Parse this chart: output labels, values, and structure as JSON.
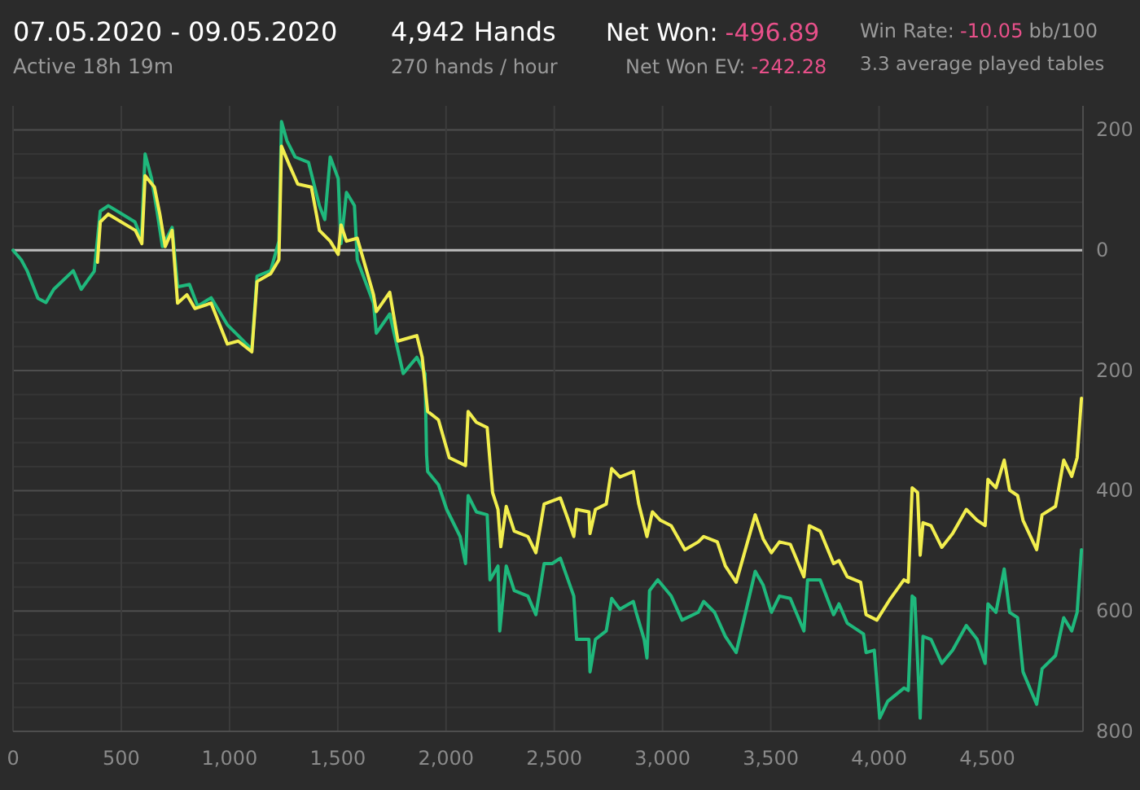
{
  "chart_data": {
    "type": "line",
    "title": "07.05.2020 - 09.05.2020",
    "subtitle": "Active 18h 19m",
    "annotations": [
      "4,942 Hands",
      "270 hands / hour",
      "Net Won:",
      "-496.89",
      "Net Won  EV:",
      "-242.28",
      "Win Rate:",
      "-10.05",
      "bb/100",
      "3.3 average played tables"
    ],
    "series": [
      {
        "color": "#1fb87c",
        "x": [
          0,
          38,
          65,
          115,
          152,
          188,
          278,
          315,
          375,
          403,
          440,
          563,
          593,
          610,
          640,
          665,
          690,
          735,
          760,
          815,
          853,
          915,
          990,
          1040,
          1103,
          1127,
          1190,
          1228,
          1240,
          1265,
          1303,
          1365,
          1415,
          1440,
          1465,
          1502,
          1515,
          1540,
          1577,
          1590,
          1665,
          1678,
          1740,
          1802,
          1865,
          1903,
          1910,
          1915,
          1965,
          2003,
          2065,
          2090,
          2102,
          2140,
          2190,
          2203,
          2240,
          2248,
          2278,
          2315,
          2378,
          2415,
          2453,
          2490,
          2528,
          2590,
          2603,
          2660,
          2665,
          2690,
          2740,
          2765,
          2803,
          2865,
          2878,
          2915,
          2928,
          2940,
          2978,
          3040,
          3090,
          3165,
          3190,
          3240,
          3290,
          3340,
          3428,
          3465,
          3503,
          3540,
          3590,
          3653,
          3670,
          3728,
          3790,
          3815,
          3853,
          3928,
          3940,
          3978,
          4003,
          4040,
          4115,
          4135,
          4153,
          4165,
          4190,
          4203,
          4240,
          4290,
          4340,
          4403,
          4453,
          4490,
          4503,
          4540,
          4578,
          4603,
          4640,
          4665,
          4728,
          4753,
          4815,
          4853,
          4890,
          4915,
          4935
        ],
        "values": [
          0,
          -16,
          -34,
          -80,
          -87,
          -65,
          -34,
          -65,
          -35,
          65,
          74,
          47,
          20,
          160,
          119,
          65,
          6,
          38,
          -61,
          -57,
          -93,
          -79,
          -124,
          -142,
          -165,
          -43,
          -34,
          15,
          214,
          182,
          155,
          146,
          74,
          51,
          155,
          119,
          11,
          96,
          74,
          -16,
          -88,
          -138,
          -106,
          -205,
          -178,
          -205,
          -340,
          -368,
          -390,
          -431,
          -476,
          -521,
          -408,
          -435,
          -440,
          -548,
          -525,
          -633,
          -525,
          -566,
          -575,
          -606,
          -521,
          -521,
          -512,
          -575,
          -647,
          -647,
          -701,
          -647,
          -633,
          -579,
          -597,
          -584,
          -602,
          -647,
          -678,
          -566,
          -548,
          -575,
          -615,
          -602,
          -584,
          -602,
          -642,
          -669,
          -534,
          -557,
          -602,
          -575,
          -579,
          -633,
          -548,
          -548,
          -606,
          -588,
          -620,
          -638,
          -669,
          -665,
          -778,
          -750,
          -728,
          -732,
          -575,
          -579,
          -778,
          -642,
          -647,
          -687,
          -665,
          -624,
          -647,
          -687,
          -588,
          -602,
          -530,
          -602,
          -611,
          -701,
          -755,
          -696,
          -674,
          -611,
          -633,
          -602,
          -498
        ]
      },
      {
        "color": "#f2ee4e",
        "x": [
          390,
          403,
          440,
          565,
          595,
          610,
          653,
          678,
          703,
          735,
          760,
          803,
          840,
          915,
          990,
          1040,
          1103,
          1127,
          1190,
          1228,
          1240,
          1277,
          1315,
          1378,
          1415,
          1465,
          1502,
          1515,
          1540,
          1590,
          1665,
          1678,
          1740,
          1778,
          1865,
          1890,
          1915,
          1965,
          2015,
          2090,
          2102,
          2140,
          2190,
          2215,
          2240,
          2253,
          2278,
          2315,
          2378,
          2415,
          2453,
          2490,
          2528,
          2565,
          2590,
          2603,
          2660,
          2665,
          2690,
          2740,
          2765,
          2803,
          2865,
          2890,
          2928,
          2953,
          2990,
          3040,
          3103,
          3165,
          3190,
          3253,
          3290,
          3340,
          3428,
          3465,
          3503,
          3540,
          3590,
          3653,
          3678,
          3728,
          3790,
          3815,
          3853,
          3915,
          3940,
          3990,
          4053,
          4115,
          4135,
          4153,
          4178,
          4190,
          4203,
          4240,
          4290,
          4340,
          4403,
          4453,
          4490,
          4503,
          4540,
          4578,
          4603,
          4640,
          4665,
          4728,
          4753,
          4815,
          4853,
          4890,
          4915,
          4935
        ],
        "values": [
          -20,
          47,
          60,
          33,
          11,
          124,
          105,
          60,
          6,
          33,
          -88,
          -74,
          -97,
          -88,
          -156,
          -151,
          -169,
          -52,
          -39,
          -16,
          173,
          141,
          110,
          105,
          33,
          15,
          -7,
          42,
          15,
          20,
          -74,
          -102,
          -70,
          -151,
          -142,
          -178,
          -268,
          -282,
          -345,
          -358,
          -268,
          -286,
          -295,
          -403,
          -431,
          -493,
          -426,
          -467,
          -476,
          -503,
          -422,
          -417,
          -412,
          -449,
          -476,
          -431,
          -435,
          -471,
          -431,
          -422,
          -363,
          -377,
          -368,
          -422,
          -476,
          -435,
          -449,
          -458,
          -498,
          -485,
          -476,
          -485,
          -525,
          -552,
          -440,
          -480,
          -503,
          -485,
          -489,
          -543,
          -458,
          -467,
          -521,
          -516,
          -543,
          -552,
          -606,
          -615,
          -579,
          -548,
          -552,
          -395,
          -403,
          -507,
          -453,
          -458,
          -494,
          -471,
          -431,
          -449,
          -458,
          -381,
          -395,
          -349,
          -399,
          -408,
          -449,
          -498,
          -440,
          -426,
          -349,
          -376,
          -345,
          -246
        ]
      }
    ],
    "xlim": [
      0,
      4942
    ],
    "xticks": [
      0,
      500,
      {
        "value": 1000,
        "label": "1,000"
      },
      {
        "value": 1500,
        "label": "1,500"
      },
      {
        "value": 2000,
        "label": "2,000"
      },
      {
        "value": 2500,
        "label": "2,500"
      },
      {
        "value": 3000,
        "label": "3,000"
      },
      {
        "value": 3500,
        "label": "3,500"
      },
      {
        "value": 4000,
        "label": "4,000"
      },
      {
        "value": 4500,
        "label": "4,500"
      }
    ],
    "ylim": [
      -800,
      240
    ],
    "yticks": [
      200,
      {
        "value": 160,
        "label": null
      },
      {
        "value": 120,
        "label": null
      },
      {
        "value": 80,
        "label": null
      },
      {
        "value": 40,
        "label": null
      },
      0,
      {
        "value": -40,
        "label": null
      },
      {
        "value": -80,
        "label": null
      },
      {
        "value": -120,
        "label": null
      },
      {
        "value": -160,
        "label": null
      },
      {
        "value": -200,
        "label": "200"
      },
      {
        "value": -240,
        "label": null
      },
      {
        "value": -280,
        "label": null
      },
      {
        "value": -320,
        "label": null
      },
      {
        "value": -360,
        "label": null
      },
      {
        "value": -400,
        "label": "400"
      },
      {
        "value": -440,
        "label": null
      },
      {
        "value": -480,
        "label": null
      },
      {
        "value": -520,
        "label": null
      },
      {
        "value": -560,
        "label": null
      },
      {
        "value": -600,
        "label": "600"
      },
      {
        "value": -640,
        "label": null
      },
      {
        "value": -680,
        "label": null
      },
      {
        "value": -720,
        "label": null
      },
      {
        "value": -760,
        "label": null
      },
      {
        "value": -800,
        "label": "800"
      }
    ],
    "ref_lines": [
      {
        "axis": "y",
        "value": 0,
        "color": "#bdbdbd"
      }
    ],
    "grid": true,
    "marker": "none",
    "line_style": "solid"
  }
}
